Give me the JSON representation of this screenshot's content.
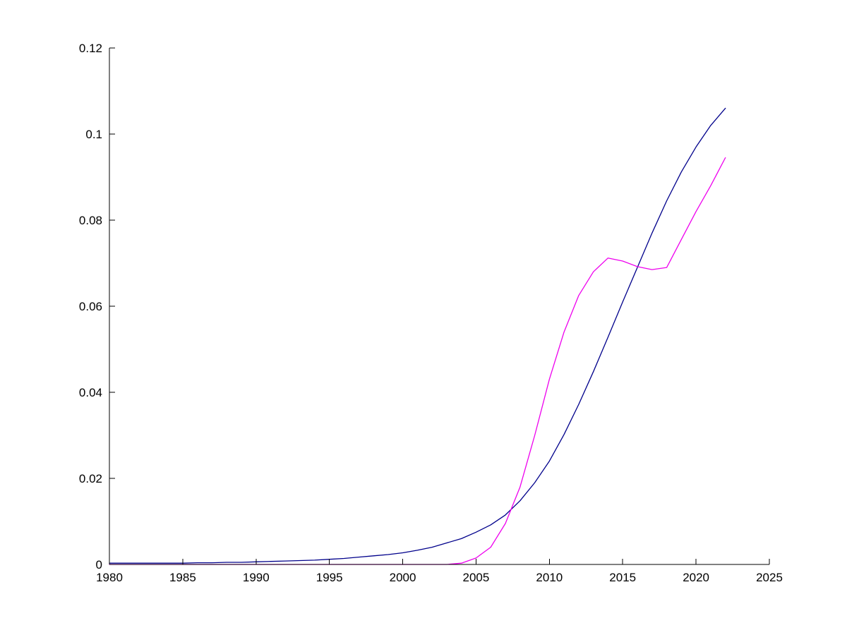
{
  "figure": {
    "background": "#ffffff",
    "axis_color": "#000000"
  },
  "chart_data": {
    "type": "line",
    "title": "",
    "xlabel": "",
    "ylabel": "",
    "xlim": [
      1980,
      2025
    ],
    "ylim": [
      0,
      0.12
    ],
    "x_ticks": [
      1980,
      1985,
      1990,
      1995,
      2000,
      2005,
      2010,
      2015,
      2020,
      2025
    ],
    "x_tick_labels": [
      "1980",
      "1985",
      "1990",
      "1995",
      "2000",
      "2005",
      "2010",
      "2015",
      "2020",
      "2025"
    ],
    "y_ticks": [
      0,
      0.02,
      0.04,
      0.06,
      0.08,
      0.1,
      0.12
    ],
    "y_tick_labels": [
      "0",
      "0.02",
      "0.04",
      "0.06",
      "0.08",
      "0.1",
      "0.12"
    ],
    "grid": false,
    "legend": null,
    "x": [
      1980,
      1981,
      1982,
      1983,
      1984,
      1985,
      1986,
      1987,
      1988,
      1989,
      1990,
      1991,
      1992,
      1993,
      1994,
      1995,
      1996,
      1997,
      1998,
      1999,
      2000,
      2001,
      2002,
      2003,
      2004,
      2005,
      2006,
      2007,
      2008,
      2009,
      2010,
      2011,
      2012,
      2013,
      2014,
      2015,
      2016,
      2017,
      2018,
      2019,
      2020,
      2021,
      2022
    ],
    "series": [
      {
        "name": "dark-blue-series",
        "color": "#00008B",
        "values": [
          0.0003,
          0.0003,
          0.0003,
          0.0003,
          0.0003,
          0.0003,
          0.0004,
          0.0004,
          0.0005,
          0.0005,
          0.0006,
          0.0007,
          0.0008,
          0.0009,
          0.001,
          0.0012,
          0.0014,
          0.0017,
          0.002,
          0.0023,
          0.0027,
          0.0033,
          0.004,
          0.005,
          0.006,
          0.0075,
          0.0092,
          0.0115,
          0.0148,
          0.019,
          0.024,
          0.0302,
          0.0372,
          0.0448,
          0.0528,
          0.061,
          0.069,
          0.077,
          0.0845,
          0.0912,
          0.097,
          0.102,
          0.106
        ]
      },
      {
        "name": "magenta-series",
        "color": "#EE00EE",
        "values": [
          0,
          0,
          0,
          0,
          0,
          0,
          0,
          0,
          0,
          0,
          0,
          0,
          0,
          0,
          0,
          0,
          0,
          0,
          0,
          0,
          0,
          0,
          0,
          0,
          0.0003,
          0.0015,
          0.004,
          0.0095,
          0.018,
          0.03,
          0.043,
          0.054,
          0.0625,
          0.068,
          0.0712,
          0.0705,
          0.0692,
          0.0685,
          0.069,
          0.0755,
          0.082,
          0.088,
          0.0945
        ]
      }
    ]
  }
}
